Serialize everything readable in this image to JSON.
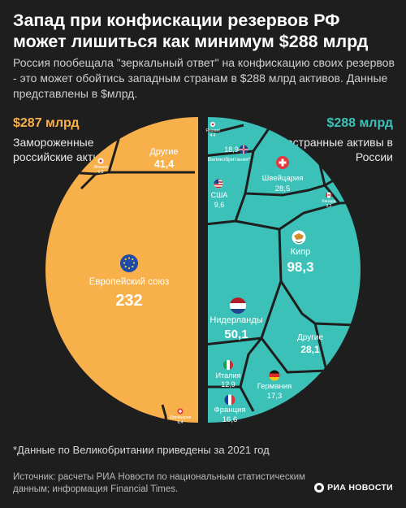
{
  "title": "Запад при конфискации резервов РФ может лишиться как минимум $288 млрд",
  "subtitle": "Россия пообещала \"зеркальный ответ\" на конфискацию своих резервов - это может обойтись западным странам в $288 млрд активов. Данные представлены в $млрд.",
  "footnote": "*Данные по Великобритании приведены за 2021 год",
  "source": "Источник: расчеты РИА Новости по национальным статистическим данным; информация Financial Times.",
  "logo": "РИА НОВОСТИ",
  "colors": {
    "left": "#f8b04a",
    "right": "#3cc1b8",
    "background": "#1e1e1e",
    "divider": "#1e1e1e"
  },
  "chart_data": {
    "type": "voronoi-treemap",
    "left": {
      "total_label": "$287 млрд",
      "description": "Замороженные российские активы",
      "cells": [
        {
          "name": "Европейский союз",
          "value": "232",
          "icon": "eu-flag-icon"
        },
        {
          "name": "Другие",
          "value": "41,4"
        },
        {
          "name": "Япония",
          "value": "6,8",
          "icon": "japan-flag-icon"
        },
        {
          "name": "Швейцария",
          "value": "6,4",
          "icon": "swiss-flag-icon"
        }
      ]
    },
    "right": {
      "total_label": "$288 млрд",
      "description": "Иностранные активы в России",
      "cells": [
        {
          "name": "Кипр",
          "value": "98,3",
          "icon": "cyprus-flag-icon"
        },
        {
          "name": "Нидерланды",
          "value": "50,1",
          "icon": "netherlands-flag-icon"
        },
        {
          "name": "Швейцария",
          "value": "28,5",
          "icon": "swiss-flag-icon"
        },
        {
          "name": "Другие",
          "value": "28,1"
        },
        {
          "name": "Великобритания*",
          "value": "18,9",
          "icon": "uk-flag-icon"
        },
        {
          "name": "Германия",
          "value": "17,3",
          "icon": "germany-flag-icon"
        },
        {
          "name": "Франция",
          "value": "16,6",
          "icon": "france-flag-icon"
        },
        {
          "name": "Италия",
          "value": "12,9",
          "icon": "italy-flag-icon"
        },
        {
          "name": "США",
          "value": "9,6",
          "icon": "usa-flag-icon"
        },
        {
          "name": "Канада",
          "value": "3,2",
          "icon": "canada-flag-icon"
        },
        {
          "name": "Япония",
          "value": "4,4",
          "icon": "japan-flag-icon"
        }
      ]
    }
  }
}
